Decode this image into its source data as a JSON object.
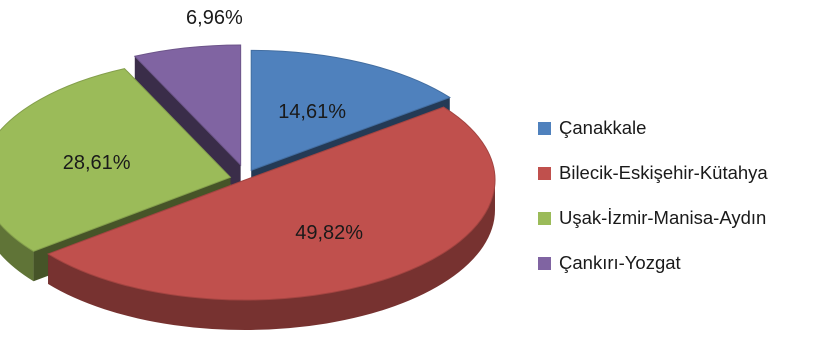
{
  "chart_data": {
    "type": "pie",
    "style": "3d-exploded",
    "title": "",
    "legend_position": "right",
    "labels_format": "percent",
    "decimal_separator": ",",
    "slices": [
      {
        "name": "Çanakkale",
        "value": 14.61,
        "label": "14,61%",
        "color": "#4f81bd"
      },
      {
        "name": "Bilecik-Eskişehir-Kütahya",
        "value": 49.82,
        "label": "49,82%",
        "color": "#c0504d"
      },
      {
        "name": "Uşak-İzmir-Manisa-Aydın",
        "value": 28.61,
        "label": "28,61%",
        "color": "#9bbb59"
      },
      {
        "name": "Çankırı-Yozgat",
        "value": 6.96,
        "label": "6,96%",
        "color": "#8064a2"
      }
    ]
  }
}
